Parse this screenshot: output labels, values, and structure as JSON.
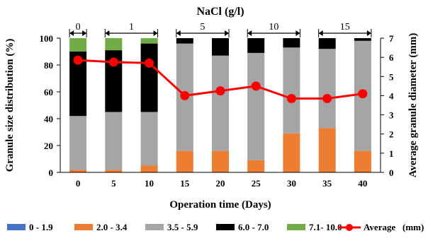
{
  "chart_data": {
    "type": "bar",
    "stacked": true,
    "title": "NaCl (g/l)",
    "xlabel": "Operation time (Days)",
    "ylabel": "Granule size distribution (%)",
    "y2label": "Average granule diameter (mm)",
    "ylim": [
      0,
      100
    ],
    "y2lim": [
      0,
      7
    ],
    "yticks": [
      "0",
      "20",
      "40",
      "60",
      "80",
      "100"
    ],
    "y2ticks": [
      "0",
      "1",
      "2",
      "3",
      "4",
      "5",
      "6",
      "7"
    ],
    "categories": [
      "0",
      "5",
      "10",
      "15",
      "20",
      "25",
      "30",
      "35",
      "40"
    ],
    "grid": false,
    "legend_position": "bottom",
    "series": [
      {
        "name": "0 - 1.9",
        "color": "#4472C4",
        "values": [
          0,
          0,
          0,
          0,
          0,
          0,
          0,
          0,
          0
        ]
      },
      {
        "name": "2.0 - 3.4",
        "color": "#ED7D31",
        "values": [
          2,
          2,
          5,
          16,
          16,
          9,
          29,
          33,
          16
        ]
      },
      {
        "name": "3.5 - 5.9",
        "color": "#A5A5A5",
        "values": [
          40,
          43,
          40,
          80,
          71,
          80,
          64,
          59,
          82
        ]
      },
      {
        "name": "6.0 - 7.0",
        "color": "#000000",
        "values": [
          48,
          46,
          51,
          4,
          13,
          11,
          7,
          8,
          2
        ]
      },
      {
        "name": "7.1- 10.0",
        "color": "#70AD47",
        "values": [
          10,
          9,
          4,
          0,
          0,
          0,
          0,
          0,
          0
        ]
      }
    ],
    "line_series": {
      "name": "Average",
      "unit": "(mm)",
      "color": "#FF0000",
      "values": [
        5.85,
        5.75,
        5.7,
        4.0,
        4.25,
        4.5,
        3.85,
        3.85,
        4.1
      ]
    },
    "salt_periods": [
      {
        "label": "0",
        "start_index": 0,
        "end_index": 0
      },
      {
        "label": "1",
        "start_index": 1,
        "end_index": 2
      },
      {
        "label": "5",
        "start_index": 3,
        "end_index": 4
      },
      {
        "label": "10",
        "start_index": 5,
        "end_index": 6
      },
      {
        "label": "15",
        "start_index": 7,
        "end_index": 8
      }
    ]
  }
}
